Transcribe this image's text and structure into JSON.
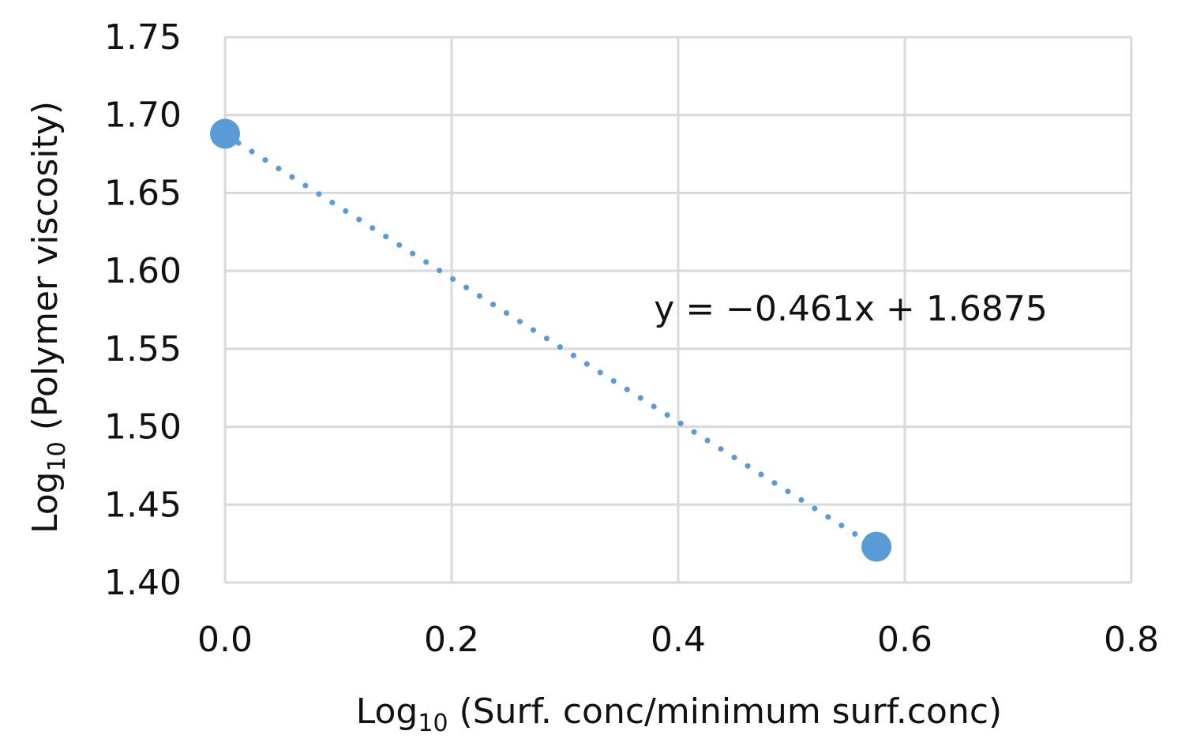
{
  "chart_data": {
    "type": "scatter",
    "title": "",
    "xlabel": {
      "prefix": "Log",
      "subscript": "10",
      "suffix": " (Surf. conc/minimum surf.conc)"
    },
    "ylabel": {
      "prefix": "Log",
      "subscript": "10",
      "suffix": " (Polymer viscosity)"
    },
    "xlim": [
      0.0,
      0.8
    ],
    "ylim": [
      1.4,
      1.75
    ],
    "x_ticks": [
      0.0,
      0.2,
      0.4,
      0.6,
      0.8
    ],
    "x_tick_labels": [
      "0.0",
      "0.2",
      "0.4",
      "0.6",
      "0.8"
    ],
    "y_ticks": [
      1.4,
      1.45,
      1.5,
      1.55,
      1.6,
      1.65,
      1.7,
      1.75
    ],
    "y_tick_labels": [
      "1.40",
      "1.45",
      "1.50",
      "1.55",
      "1.60",
      "1.65",
      "1.70",
      "1.75"
    ],
    "grid": true,
    "legend": "none",
    "series": [
      {
        "color": "#5b9bd5",
        "points": [
          {
            "x": 0.0,
            "y": 1.688
          },
          {
            "x": 0.575,
            "y": 1.423
          }
        ]
      }
    ],
    "trendline": {
      "type": "linear",
      "style": "dotted",
      "color": "#5b9bd5",
      "slope": -0.461,
      "intercept": 1.6875,
      "x_range": [
        0.0,
        0.575
      ],
      "equation_label": "y = −0.461x + 1.6875",
      "label_x": 0.38,
      "label_y": 1.563
    }
  }
}
